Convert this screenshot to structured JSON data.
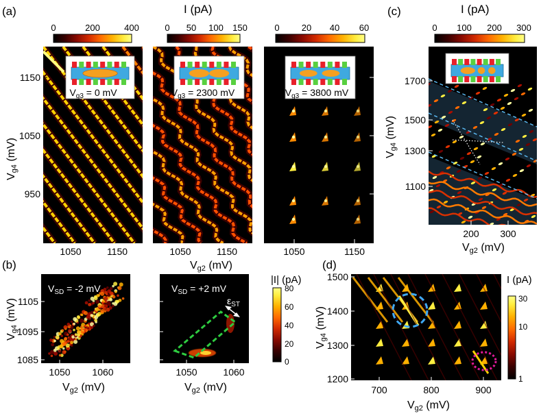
{
  "colormap": {
    "stops": [
      "#000000",
      "#3a0000",
      "#8a0a00",
      "#d22a00",
      "#ff6a00",
      "#ffb000",
      "#ffee40",
      "#ffff88"
    ]
  },
  "panel_a": {
    "letter": "(a)",
    "current_label": "I  (pA)",
    "ylabel": "V",
    "ylabel_sub": "g4",
    "ylabel_unit": " (mV)",
    "xlabel": "V",
    "xlabel_sub": "g2",
    "xlabel_unit": " (mV)",
    "yticks": [
      "1150",
      "1050",
      "950"
    ],
    "xticks": [
      "1050",
      "1150"
    ],
    "subpanels": [
      {
        "cbar_ticks": [
          "0",
          "200",
          "400"
        ],
        "label_prefix": "V",
        "label_sub": "g3",
        "label_value": " = 0 mV"
      },
      {
        "cbar_ticks": [
          "0",
          "50",
          "100",
          "150"
        ],
        "label_prefix": "V",
        "label_sub": "g3",
        "label_value": " = 2300 mV"
      },
      {
        "cbar_ticks": [
          "0",
          "20",
          "40",
          "60"
        ],
        "label_prefix": "V",
        "label_sub": "g3",
        "label_value": " = 3800 mV"
      }
    ]
  },
  "panel_b": {
    "letter": "(b)",
    "ylabel": "V",
    "ylabel_sub": "g4",
    "ylabel_unit": " (mV)",
    "xlabel": "V",
    "xlabel_sub": "g2",
    "xlabel_unit": " (mV)",
    "yticks": [
      "1105",
      "1095",
      "1085"
    ],
    "xticks_left": [
      "1050",
      "1060"
    ],
    "xticks_right": [
      "1050",
      "1060"
    ],
    "left_label_prefix": "V",
    "left_label_sub": "SD",
    "left_label_value": " = -2 mV",
    "right_label_prefix": "V",
    "right_label_sub": "SD",
    "right_label_value": " = +2 mV",
    "epsilon_label": "ε",
    "epsilon_sub": "ST",
    "cbar_label": "|I|  (pA)",
    "cbar_ticks": [
      "80",
      "60",
      "40",
      "20",
      "0"
    ]
  },
  "panel_c": {
    "letter": "(c)",
    "current_label": "I  (pA)",
    "cbar_ticks": [
      "0",
      "100",
      "200",
      "300"
    ],
    "ylabel": "V",
    "ylabel_sub": "g4",
    "ylabel_unit": " (mV)",
    "xlabel": "V",
    "xlabel_sub": "g2",
    "xlabel_unit": " (mV)",
    "yticks": [
      "1700",
      "1500",
      "1300",
      "1100"
    ],
    "xticks": [
      "200",
      "300"
    ]
  },
  "panel_d": {
    "letter": "(d)",
    "ylabel": "V",
    "ylabel_sub": "g4",
    "ylabel_unit": " (mV)",
    "xlabel": "V",
    "xlabel_sub": "g2",
    "xlabel_unit": " (mV)",
    "yticks": [
      "1500",
      "1400",
      "1300",
      "1200"
    ],
    "xticks": [
      "700",
      "800",
      "900"
    ],
    "cbar_label": "I (pA)",
    "cbar_ticks": [
      "30",
      "10",
      "1"
    ]
  }
}
